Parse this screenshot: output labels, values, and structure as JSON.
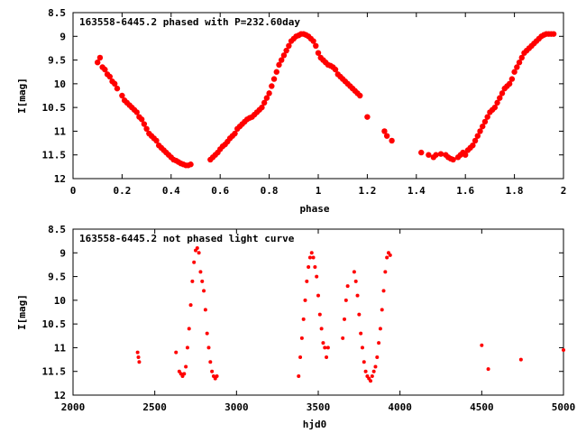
{
  "colors": {
    "points": "#ff0000",
    "axis": "#000000",
    "background": "#ffffff"
  },
  "chart_data": [
    {
      "type": "scatter",
      "title": "163558-6445.2 phased with P=232.60day",
      "xlabel": "phase",
      "ylabel": "I[mag]",
      "xlim": [
        0,
        2
      ],
      "ylim": [
        8.5,
        12
      ],
      "y_inverted": true,
      "grid": false,
      "xticks": [
        "0",
        "0.2",
        "0.4",
        "0.6",
        "0.8",
        "1",
        "1.2",
        "1.4",
        "1.6",
        "1.8",
        "2"
      ],
      "yticks": [
        "8.5",
        "9",
        "9.5",
        "10",
        "10.5",
        "11",
        "11.5",
        "12"
      ],
      "series": [
        {
          "x": [
            0.1,
            0.11,
            0.12,
            0.13,
            0.14,
            0.15,
            0.16,
            0.17,
            0.18,
            0.2,
            0.21,
            0.22,
            0.23,
            0.24,
            0.25,
            0.26,
            0.27,
            0.28,
            0.29,
            0.3,
            0.31,
            0.32,
            0.33,
            0.34,
            0.35,
            0.36,
            0.37,
            0.38,
            0.39,
            0.4,
            0.41,
            0.42,
            0.43,
            0.44,
            0.45,
            0.46,
            0.47,
            0.48,
            0.56,
            0.57,
            0.58,
            0.59,
            0.6,
            0.61,
            0.62,
            0.63,
            0.64,
            0.65,
            0.66,
            0.67,
            0.68,
            0.69,
            0.7,
            0.71,
            0.72,
            0.73,
            0.74,
            0.75,
            0.76,
            0.77,
            0.78,
            0.79,
            0.8,
            0.81,
            0.82,
            0.83,
            0.84,
            0.85,
            0.86,
            0.87,
            0.88,
            0.89,
            0.9,
            0.91,
            0.92,
            0.93,
            0.94,
            0.95,
            0.96,
            0.97,
            0.98,
            0.99,
            1.0,
            1.01,
            1.02,
            1.03,
            1.04,
            1.05,
            1.06,
            1.07,
            1.08,
            1.09,
            1.1,
            1.11,
            1.12,
            1.13,
            1.14,
            1.15,
            1.16,
            1.17,
            1.2,
            1.27,
            1.28,
            1.3,
            1.42,
            1.45,
            1.47,
            1.48,
            1.5,
            1.52,
            1.53,
            1.54,
            1.55,
            1.57,
            1.58,
            1.59,
            1.6,
            1.61,
            1.62,
            1.63,
            1.64,
            1.65,
            1.66,
            1.67,
            1.68,
            1.69,
            1.7,
            1.71,
            1.72,
            1.73,
            1.74,
            1.75,
            1.76,
            1.77,
            1.78,
            1.79,
            1.8,
            1.81,
            1.82,
            1.83,
            1.84,
            1.85,
            1.86,
            1.87,
            1.88,
            1.89,
            1.9,
            1.91,
            1.92,
            1.93,
            1.94,
            1.95,
            1.96
          ],
          "y": [
            9.55,
            9.45,
            9.65,
            9.7,
            9.8,
            9.85,
            9.95,
            10.0,
            10.1,
            10.25,
            10.35,
            10.4,
            10.45,
            10.5,
            10.55,
            10.6,
            10.7,
            10.75,
            10.85,
            10.95,
            11.05,
            11.1,
            11.15,
            11.2,
            11.3,
            11.35,
            11.4,
            11.45,
            11.5,
            11.55,
            11.6,
            11.62,
            11.65,
            11.68,
            11.7,
            11.72,
            11.72,
            11.7,
            11.6,
            11.55,
            11.5,
            11.45,
            11.38,
            11.32,
            11.28,
            11.22,
            11.15,
            11.1,
            11.05,
            10.95,
            10.9,
            10.85,
            10.8,
            10.75,
            10.72,
            10.7,
            10.65,
            10.6,
            10.55,
            10.5,
            10.4,
            10.3,
            10.2,
            10.05,
            9.9,
            9.75,
            9.6,
            9.5,
            9.4,
            9.3,
            9.2,
            9.1,
            9.05,
            9.0,
            8.98,
            8.95,
            8.95,
            8.97,
            9.0,
            9.05,
            9.1,
            9.2,
            9.35,
            9.45,
            9.5,
            9.55,
            9.6,
            9.62,
            9.65,
            9.7,
            9.8,
            9.85,
            9.9,
            9.95,
            10.0,
            10.05,
            10.1,
            10.15,
            10.2,
            10.25,
            10.7,
            11.0,
            11.1,
            11.2,
            11.45,
            11.5,
            11.55,
            11.5,
            11.48,
            11.5,
            11.55,
            11.58,
            11.6,
            11.55,
            11.5,
            11.45,
            11.5,
            11.4,
            11.35,
            11.3,
            11.2,
            11.1,
            11.0,
            10.9,
            10.8,
            10.7,
            10.6,
            10.55,
            10.5,
            10.4,
            10.3,
            10.2,
            10.1,
            10.05,
            10.0,
            9.9,
            9.75,
            9.65,
            9.55,
            9.45,
            9.35,
            9.3,
            9.25,
            9.2,
            9.15,
            9.1,
            9.05,
            9.0,
            8.97,
            8.95,
            8.95,
            8.95,
            8.95
          ]
        }
      ]
    },
    {
      "type": "scatter",
      "title": "163558-6445.2 not phased light curve",
      "xlabel": "hjd0",
      "ylabel": "I[mag]",
      "xlim": [
        2000,
        5000
      ],
      "ylim": [
        8.5,
        12
      ],
      "y_inverted": true,
      "grid": false,
      "xticks": [
        "2000",
        "2500",
        "3000",
        "3500",
        "4000",
        "4500",
        "5000"
      ],
      "yticks": [
        "8.5",
        "9",
        "9.5",
        "10",
        "10.5",
        "11",
        "11.5",
        "12"
      ],
      "series": [
        {
          "x": [
            2395,
            2400,
            2405,
            2630,
            2650,
            2660,
            2670,
            2680,
            2690,
            2700,
            2710,
            2720,
            2730,
            2740,
            2750,
            2760,
            2770,
            2780,
            2790,
            2800,
            2810,
            2820,
            2830,
            2840,
            2850,
            2860,
            2870,
            2880,
            3380,
            3390,
            3400,
            3410,
            3420,
            3430,
            3440,
            3450,
            3460,
            3470,
            3480,
            3490,
            3500,
            3510,
            3520,
            3530,
            3540,
            3550,
            3560,
            3650,
            3660,
            3670,
            3680,
            3720,
            3730,
            3740,
            3750,
            3760,
            3770,
            3780,
            3790,
            3800,
            3810,
            3820,
            3830,
            3840,
            3850,
            3860,
            3870,
            3880,
            3890,
            3900,
            3910,
            3920,
            3930,
            3940,
            4500,
            4540,
            4740,
            5000
          ],
          "y": [
            11.1,
            11.2,
            11.3,
            11.1,
            11.5,
            11.55,
            11.6,
            11.55,
            11.4,
            11.0,
            10.6,
            10.1,
            9.6,
            9.2,
            8.95,
            8.9,
            9.0,
            9.4,
            9.6,
            9.8,
            10.2,
            10.7,
            11.0,
            11.3,
            11.5,
            11.6,
            11.65,
            11.6,
            11.6,
            11.2,
            10.8,
            10.4,
            10.0,
            9.6,
            9.3,
            9.1,
            9.0,
            9.1,
            9.3,
            9.5,
            9.9,
            10.3,
            10.6,
            10.9,
            11.0,
            11.2,
            11.0,
            10.8,
            10.4,
            10.0,
            9.7,
            9.4,
            9.6,
            9.9,
            10.3,
            10.7,
            11.0,
            11.3,
            11.5,
            11.6,
            11.65,
            11.7,
            11.6,
            11.5,
            11.4,
            11.2,
            10.9,
            10.6,
            10.2,
            9.8,
            9.4,
            9.1,
            9.0,
            9.05,
            10.95,
            11.45,
            11.25,
            11.05
          ]
        }
      ]
    }
  ]
}
